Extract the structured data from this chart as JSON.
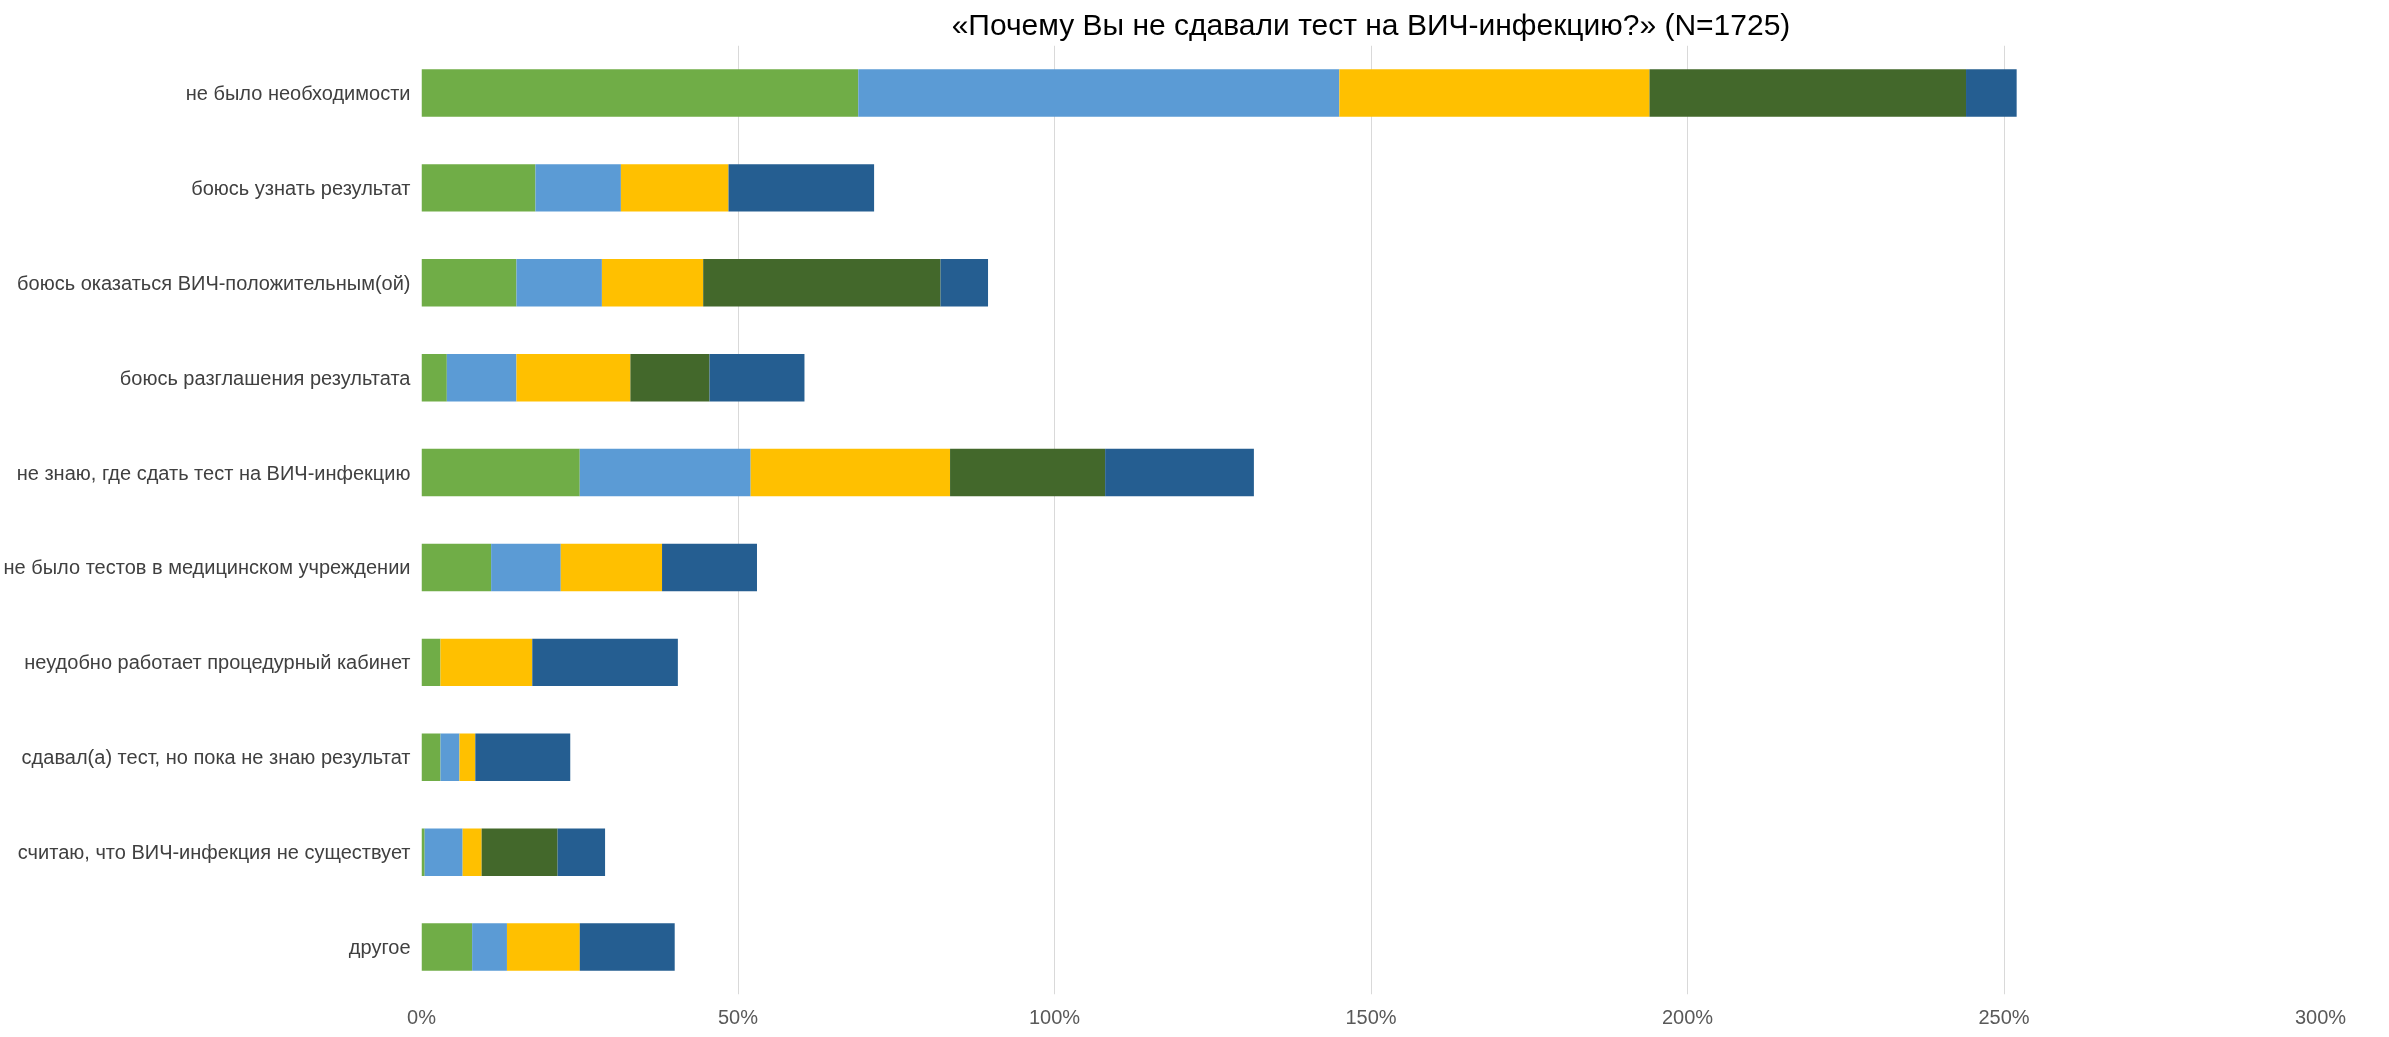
{
  "chart_data": {
    "type": "bar",
    "orientation": "horizontal",
    "stacked": true,
    "title": "«Почему Вы не сдавали тест на ВИЧ-инфекцию?» (N=1725)",
    "categories": [
      "не было необходимости",
      "боюсь узнать результат",
      "боюсь оказаться ВИЧ-положительным(ой)",
      "боюсь разглашения результата",
      "не знаю, где сдать тест на ВИЧ-инфекцию",
      "не было тестов в медицинском учреждении",
      "неудобно работает процедурный кабинет",
      "сдавал(а) тест, но пока не знаю результат",
      "считаю, что ВИЧ-инфекция не существует",
      "другое"
    ],
    "series": [
      {
        "color": "#70ad47",
        "values": [
          69,
          18,
          15,
          4,
          25,
          11,
          3,
          3,
          0.5,
          8
        ]
      },
      {
        "color": "#5b9bd5",
        "values": [
          76,
          13.5,
          13.5,
          11,
          27,
          11,
          null,
          3,
          6,
          5.5
        ]
      },
      {
        "color": "#ffc000",
        "values": [
          49,
          17,
          16,
          18,
          31.5,
          16,
          14.5,
          2.5,
          3,
          11.5
        ]
      },
      {
        "color": "#43682b",
        "values": [
          50,
          null,
          37.5,
          12.5,
          24.5,
          null,
          null,
          null,
          12,
          null
        ]
      },
      {
        "color": "#255e91",
        "values": [
          8,
          23,
          7.5,
          15,
          23.5,
          15,
          23,
          15,
          7.5,
          15
        ]
      }
    ],
    "xlim": [
      0,
      300
    ],
    "xticks": [
      {
        "value": 0,
        "label": "0%"
      },
      {
        "value": 50,
        "label": "50%"
      },
      {
        "value": 100,
        "label": "100%"
      },
      {
        "value": 150,
        "label": "150%"
      },
      {
        "value": 200,
        "label": "200%"
      },
      {
        "value": 250,
        "label": "250%"
      },
      {
        "value": 300,
        "label": "300%"
      }
    ],
    "grid": "x"
  }
}
